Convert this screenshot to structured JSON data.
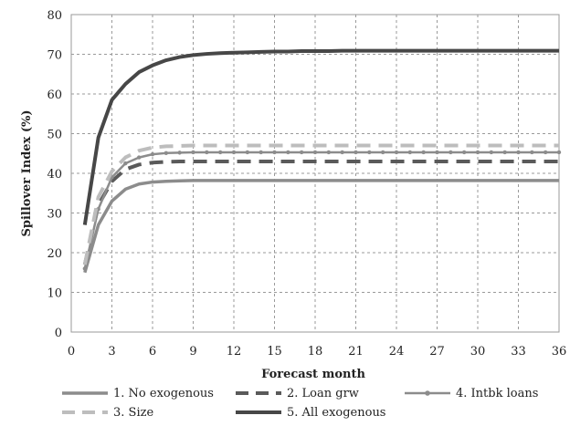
{
  "chart_data": {
    "type": "line",
    "title": "",
    "xlabel": "Forecast month",
    "ylabel": "Spillover Index (%)",
    "xlim": [
      0,
      36
    ],
    "ylim": [
      0,
      80
    ],
    "x_ticks": [
      0,
      3,
      6,
      9,
      12,
      15,
      18,
      21,
      24,
      27,
      30,
      33,
      36
    ],
    "y_ticks": [
      0,
      10,
      20,
      30,
      40,
      50,
      60,
      70,
      80
    ],
    "grid": true,
    "legend_position": "bottom",
    "x": [
      1,
      2,
      3,
      4,
      5,
      6,
      7,
      8,
      9,
      10,
      11,
      12,
      13,
      14,
      15,
      16,
      17,
      18,
      19,
      20,
      21,
      22,
      23,
      24,
      25,
      26,
      27,
      28,
      29,
      30,
      31,
      32,
      33,
      34,
      35,
      36
    ],
    "series": [
      {
        "name": "1. No exogenous",
        "color": "#8c8c8c",
        "style": "solid",
        "values": [
          15,
          27,
          33,
          36,
          37.3,
          37.8,
          38,
          38.1,
          38.2,
          38.2,
          38.2,
          38.2,
          38.2,
          38.2,
          38.2,
          38.2,
          38.2,
          38.2,
          38.2,
          38.2,
          38.2,
          38.2,
          38.2,
          38.2,
          38.2,
          38.2,
          38.2,
          38.2,
          38.2,
          38.2,
          38.2,
          38.2,
          38.2,
          38.2,
          38.2,
          38.2
        ]
      },
      {
        "name": "2. Loan grw",
        "color": "#5a5a5a",
        "style": "dashed",
        "values": [
          17,
          32,
          38,
          41,
          42.2,
          42.7,
          42.9,
          43,
          43,
          43,
          43,
          43,
          43,
          43,
          43,
          43,
          43,
          43,
          43,
          43,
          43,
          43,
          43,
          43,
          43,
          43,
          43,
          43,
          43,
          43,
          43,
          43,
          43,
          43,
          43,
          43
        ]
      },
      {
        "name": "4. Intbk loans",
        "color": "#8c8c8c",
        "style": "solid-marker",
        "values": [
          16,
          31,
          39,
          42.5,
          44,
          44.8,
          45.1,
          45.2,
          45.3,
          45.3,
          45.3,
          45.3,
          45.3,
          45.3,
          45.3,
          45.3,
          45.3,
          45.3,
          45.3,
          45.3,
          45.3,
          45.3,
          45.3,
          45.3,
          45.3,
          45.3,
          45.3,
          45.3,
          45.3,
          45.3,
          45.3,
          45.3,
          45.3,
          45.3,
          45.3,
          45.3
        ]
      },
      {
        "name": "3. Size",
        "color": "#bdbdbd",
        "style": "dashed",
        "values": [
          17,
          34,
          40.5,
          44,
          45.7,
          46.5,
          46.8,
          46.9,
          47,
          47,
          47,
          47,
          47,
          47,
          47,
          47,
          47,
          47,
          47,
          47,
          47,
          47,
          47,
          47,
          47,
          47,
          47,
          47,
          47,
          47,
          47,
          47,
          47,
          47,
          47,
          47
        ]
      },
      {
        "name": "5. All exogenous",
        "color": "#474747",
        "style": "solid-thick",
        "values": [
          27,
          49,
          58.5,
          62.5,
          65.5,
          67.2,
          68.5,
          69.3,
          69.8,
          70.1,
          70.3,
          70.4,
          70.5,
          70.6,
          70.7,
          70.7,
          70.8,
          70.8,
          70.8,
          70.9,
          70.9,
          70.9,
          70.9,
          70.9,
          70.9,
          70.9,
          70.9,
          70.9,
          70.9,
          70.9,
          70.9,
          70.9,
          70.9,
          70.9,
          70.9,
          70.9
        ]
      }
    ],
    "legend_rows": [
      [
        "1. No exogenous",
        "2. Loan grw",
        "4. Intbk loans"
      ],
      [
        "3. Size",
        "5. All exogenous"
      ]
    ]
  }
}
